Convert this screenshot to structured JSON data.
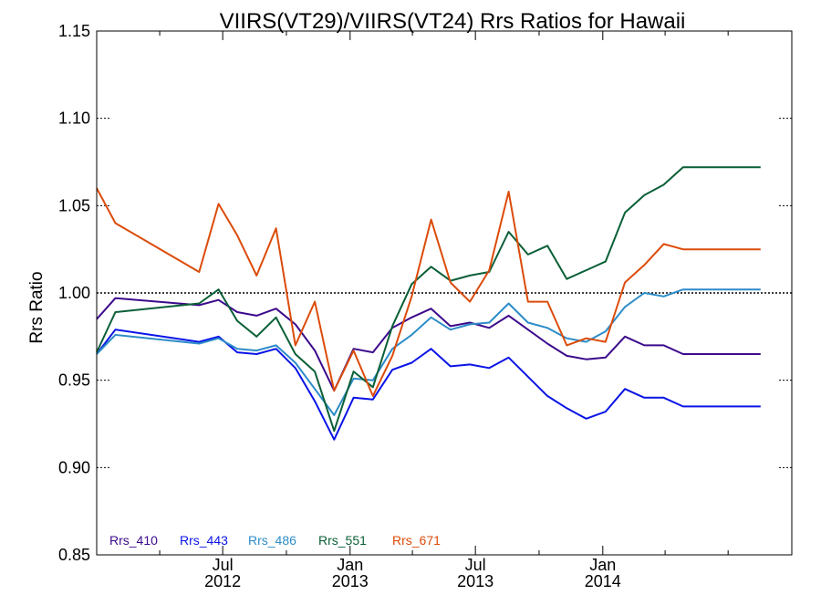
{
  "chart_data": {
    "type": "line",
    "title": "VIIRS(VT29)/VIIRS(VT24)  Rrs Ratios for Hawaii",
    "ylabel": "Rrs Ratio",
    "ylim": [
      0.85,
      1.15
    ],
    "xlim": [
      "2012-01-01",
      "2014-10-01"
    ],
    "reference_line": 1.0,
    "y_ticks": [
      {
        "value": 0.85,
        "label": "0.85"
      },
      {
        "value": 0.9,
        "label": "0.90"
      },
      {
        "value": 0.95,
        "label": "0.95"
      },
      {
        "value": 1.0,
        "label": "1.00"
      },
      {
        "value": 1.05,
        "label": "1.05"
      },
      {
        "value": 1.1,
        "label": "1.10"
      },
      {
        "value": 1.15,
        "label": "1.15"
      }
    ],
    "x_major_ticks": [
      {
        "date": "2012-07-01",
        "label": "Jul",
        "year": "2012"
      },
      {
        "date": "2013-01-01",
        "label": "Jan",
        "year": "2013"
      },
      {
        "date": "2013-07-01",
        "label": "Jul",
        "year": "2013"
      },
      {
        "date": "2014-01-01",
        "label": "Jan",
        "year": "2014"
      }
    ],
    "x_minor_ticks": [
      "2012-04-01",
      "2012-10-01",
      "2013-04-01",
      "2013-10-01",
      "2014-04-01",
      "2014-07-01"
    ],
    "x": [
      "2012-01-01",
      "2012-01-28",
      "2012-05-28",
      "2012-06-25",
      "2012-07-22",
      "2012-08-19",
      "2012-09-16",
      "2012-10-14",
      "2012-11-11",
      "2012-12-09",
      "2013-01-06",
      "2013-02-03",
      "2013-03-03",
      "2013-03-31",
      "2013-04-28",
      "2013-05-26",
      "2013-06-23",
      "2013-07-21",
      "2013-08-18",
      "2013-09-15",
      "2013-10-13",
      "2013-11-10",
      "2013-12-08",
      "2014-01-05",
      "2014-02-02",
      "2014-03-02",
      "2014-03-30",
      "2014-04-27",
      "2014-05-25",
      "2014-06-22",
      "2014-07-20",
      "2014-08-17"
    ],
    "series": [
      {
        "name": "Rrs_410",
        "color": "#3c0a8c",
        "values": [
          0.985,
          0.997,
          0.993,
          0.996,
          0.989,
          0.987,
          0.991,
          0.982,
          0.967,
          0.944,
          0.968,
          0.966,
          0.98,
          0.986,
          0.991,
          0.981,
          0.983,
          0.98,
          0.987,
          0.979,
          0.971,
          0.964,
          0.962,
          0.963,
          0.975,
          0.97,
          0.97,
          0.965,
          0.965,
          0.965,
          0.965,
          0.965
        ]
      },
      {
        "name": "Rrs_443",
        "color": "#0a14e6",
        "values": [
          0.965,
          0.979,
          0.972,
          0.975,
          0.966,
          0.965,
          0.968,
          0.957,
          0.938,
          0.916,
          0.94,
          0.939,
          0.956,
          0.96,
          0.968,
          0.958,
          0.959,
          0.957,
          0.963,
          0.952,
          0.941,
          0.934,
          0.928,
          0.932,
          0.945,
          0.94,
          0.94,
          0.935,
          0.935,
          0.935,
          0.935,
          0.935
        ]
      },
      {
        "name": "Rrs_486",
        "color": "#2d8cc8",
        "values": [
          0.965,
          0.976,
          0.971,
          0.974,
          0.968,
          0.967,
          0.97,
          0.96,
          0.945,
          0.93,
          0.951,
          0.95,
          0.968,
          0.976,
          0.986,
          0.979,
          0.982,
          0.983,
          0.994,
          0.983,
          0.98,
          0.974,
          0.972,
          0.978,
          0.992,
          1.0,
          0.998,
          1.002,
          1.002,
          1.002,
          1.002,
          1.002
        ]
      },
      {
        "name": "Rrs_551",
        "color": "#0a5f37",
        "values": [
          0.966,
          0.989,
          0.994,
          1.002,
          0.984,
          0.975,
          0.986,
          0.965,
          0.955,
          0.921,
          0.955,
          0.946,
          0.981,
          1.005,
          1.015,
          1.007,
          1.01,
          1.012,
          1.035,
          1.022,
          1.027,
          1.008,
          1.013,
          1.018,
          1.046,
          1.056,
          1.062,
          1.072,
          1.072,
          1.072,
          1.072,
          1.072
        ]
      },
      {
        "name": "Rrs_671",
        "color": "#dc4b0a",
        "values": [
          1.06,
          1.04,
          1.012,
          1.051,
          1.033,
          1.01,
          1.037,
          0.97,
          0.995,
          0.944,
          0.967,
          0.941,
          0.964,
          0.998,
          1.042,
          1.006,
          0.995,
          1.013,
          1.058,
          0.995,
          0.995,
          0.97,
          0.974,
          0.972,
          1.006,
          1.016,
          1.028,
          1.025,
          1.025,
          1.025,
          1.025,
          1.025
        ]
      }
    ],
    "legend_position": "bottom-left"
  }
}
